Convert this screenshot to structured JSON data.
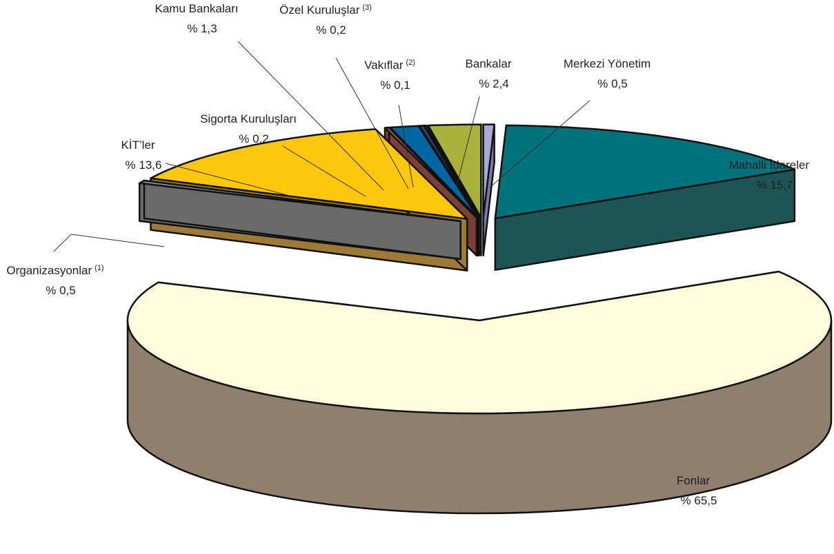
{
  "chart_data": {
    "type": "pie3d",
    "categories": [
      "Merkezi Yönetim",
      "Mahalli İdareler",
      "Fonlar",
      "Organizasyonlar",
      "KİT’ler",
      "Sigorta Kuruluşları",
      "Kamu Bankaları",
      "Özel Kuruluşlar",
      "Vakıflar",
      "Bankalar"
    ],
    "superscripts": [
      null,
      null,
      null,
      "(1)",
      null,
      null,
      null,
      "(3)",
      "(2)",
      null
    ],
    "values": [
      0.5,
      15.7,
      65.5,
      0.5,
      13.6,
      0.2,
      1.3,
      0.2,
      0.1,
      2.4
    ],
    "value_labels": [
      "% 0,5",
      "% 15,7",
      "% 65,5",
      "% 0,5",
      "% 13,6",
      "% 0,2",
      "% 1,3",
      "% 0,2",
      "% 0,1",
      "% 2,4"
    ],
    "colors": [
      "#a9a9d8",
      "#00727c",
      "#fffbdc",
      "#8a8a8a",
      "#fec60c",
      "#a05c52",
      "#0067a3",
      "#3f3f86",
      "#6d6da6",
      "#a8b23a"
    ],
    "side_colors": [
      "#7a7aa8",
      "#1f5457",
      "#8e7f6e",
      "#6a6a6a",
      "#9e7a38",
      "#7a4038",
      "#004c78",
      "#2a2a60",
      "#4d4d7a",
      "#6f7626"
    ]
  }
}
